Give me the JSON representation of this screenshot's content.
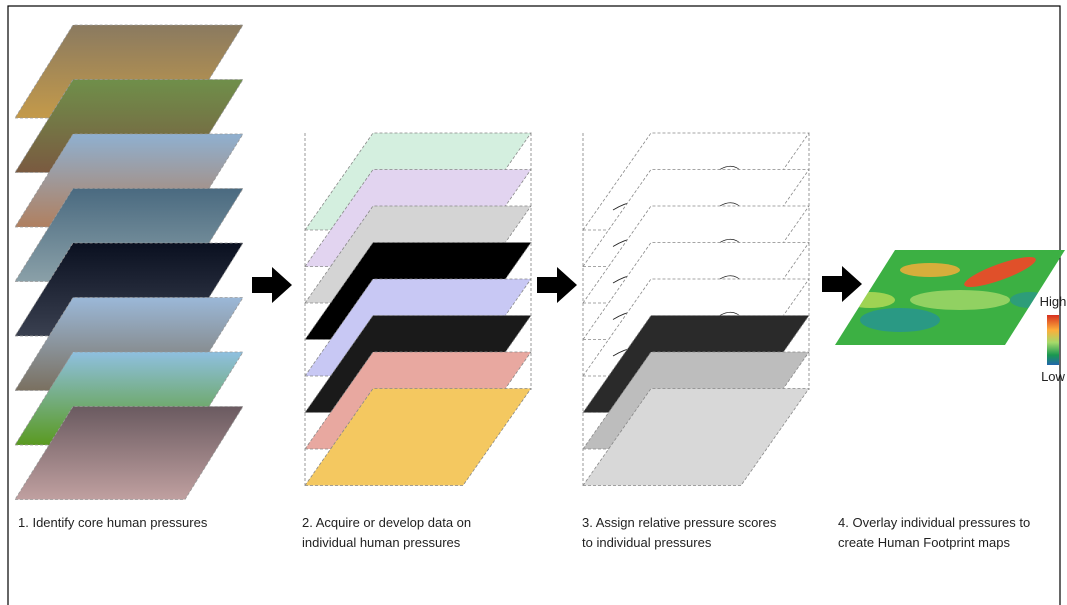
{
  "steps": [
    {
      "lines": [
        "1. Identify core human pressures"
      ]
    },
    {
      "lines": [
        "2. Acquire or develop data on",
        "individual human pressures"
      ]
    },
    {
      "lines": [
        "3. Assign relative pressure scores",
        "to individual pressures"
      ]
    },
    {
      "lines": [
        "4. Overlay individual pressures to",
        "create Human Footprint maps"
      ]
    }
  ],
  "legend": {
    "high": "High",
    "low": "Low"
  }
}
